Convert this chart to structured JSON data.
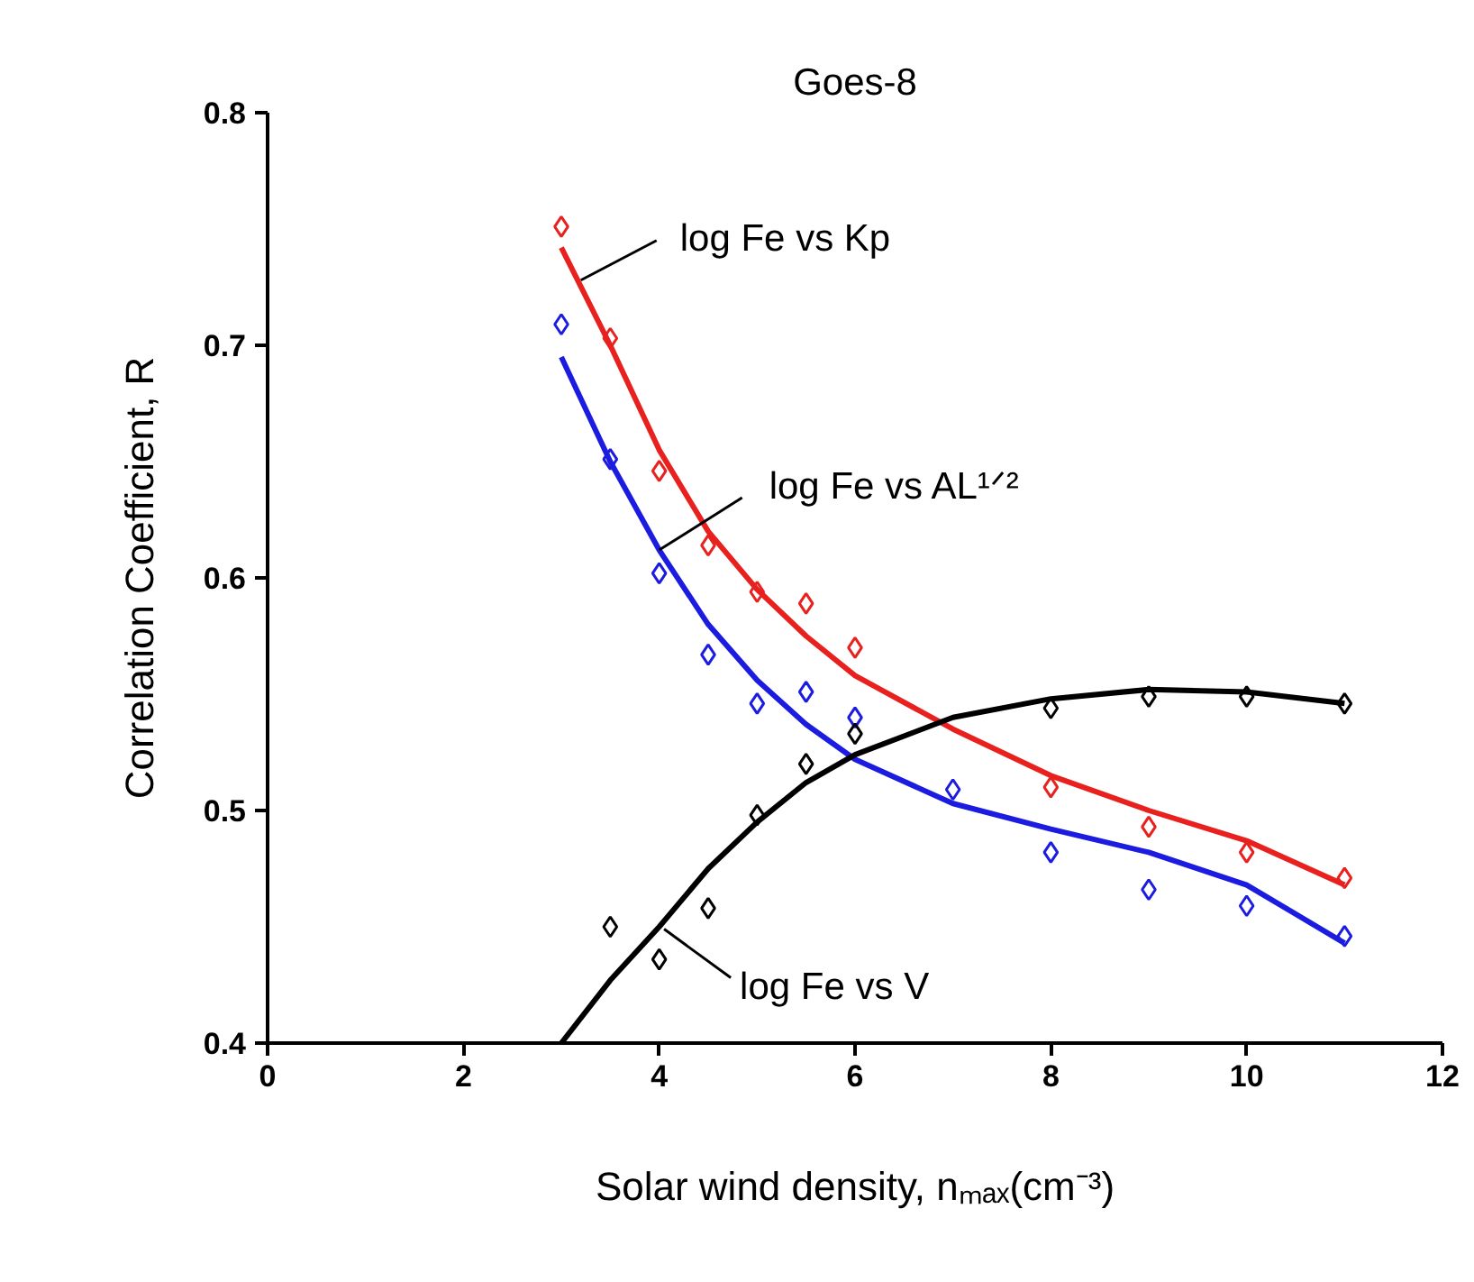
{
  "chart_data": {
    "type": "scatter",
    "title": "Goes-8",
    "xlabel": "Solar wind density, nₘₐₓ(cm⁻³)",
    "ylabel": "Correlation Coefficient, R",
    "xlim": [
      0,
      12
    ],
    "ylim": [
      0.4,
      0.8
    ],
    "xticks": [
      0,
      2,
      4,
      6,
      8,
      10,
      12
    ],
    "yticks": [
      0.4,
      0.5,
      0.6,
      0.7,
      0.8
    ],
    "grid": false,
    "marker": "diamond",
    "series": [
      {
        "color": "#e8211f",
        "x": [
          3,
          3.5,
          4,
          4.5,
          5,
          5.5,
          6,
          8,
          9,
          10,
          11
        ],
        "values": [
          0.751,
          0.703,
          0.646,
          0.614,
          0.594,
          0.589,
          0.57,
          0.51,
          0.493,
          0.482,
          0.471
        ]
      },
      {
        "color": "#1c1ce0",
        "x": [
          3,
          3.5,
          4,
          4.5,
          5,
          5.5,
          6,
          7,
          8,
          9,
          10,
          11
        ],
        "values": [
          0.709,
          0.651,
          0.602,
          0.567,
          0.546,
          0.551,
          0.54,
          0.509,
          0.482,
          0.466,
          0.459,
          0.446
        ]
      },
      {
        "color": "#000000",
        "x": [
          3.5,
          4,
          4.5,
          5,
          5.5,
          6,
          8,
          9,
          10,
          11
        ],
        "values": [
          0.45,
          0.436,
          0.458,
          0.498,
          0.52,
          0.533,
          0.544,
          0.549,
          0.549,
          0.546
        ]
      },
      {
        "type": "line",
        "marker": "none",
        "line_style": "solid",
        "color": "#e8211f",
        "x": [
          3,
          3.5,
          4,
          4.5,
          5,
          5.5,
          6,
          7,
          8,
          9,
          10,
          11
        ],
        "values": [
          0.742,
          0.7,
          0.655,
          0.62,
          0.595,
          0.575,
          0.558,
          0.535,
          0.515,
          0.5,
          0.487,
          0.468
        ]
      },
      {
        "type": "line",
        "marker": "none",
        "line_style": "solid",
        "color": "#1c1ce0",
        "x": [
          3,
          3.5,
          4,
          4.5,
          5,
          5.5,
          6,
          7,
          8,
          9,
          10,
          11
        ],
        "values": [
          0.695,
          0.65,
          0.612,
          0.58,
          0.556,
          0.537,
          0.522,
          0.503,
          0.492,
          0.482,
          0.468,
          0.443
        ]
      },
      {
        "type": "line",
        "marker": "none",
        "line_style": "solid",
        "color": "#000000",
        "x": [
          3,
          3.5,
          4,
          4.5,
          5,
          5.5,
          6,
          7,
          8,
          9,
          10,
          11
        ],
        "values": [
          0.4,
          0.427,
          0.45,
          0.475,
          0.495,
          0.512,
          0.524,
          0.54,
          0.548,
          0.552,
          0.551,
          0.546
        ]
      }
    ],
    "annotations": [
      {
        "text": "log Fe  vs  Kp",
        "x": 3.2,
        "y": 0.728
      },
      {
        "text": "log Fe  vs  AL¹ᐟ²",
        "x": 4,
        "y": 0.612
      },
      {
        "text": "log Fe  vs  V",
        "x": 4.05,
        "y": 0.449
      }
    ]
  }
}
